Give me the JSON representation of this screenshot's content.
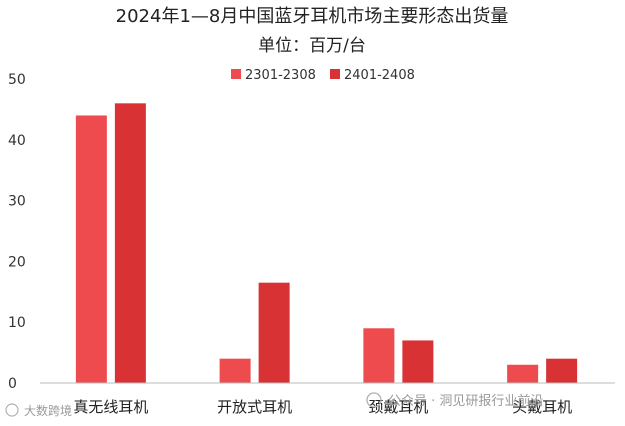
{
  "chart_data": {
    "type": "bar",
    "title": "2024年1—8月中国蓝牙耳机市场主要形态出货量",
    "subtitle": "单位：百万/台",
    "categories": [
      "真无线耳机",
      "开放式耳机",
      "颈戴耳机",
      "头戴耳机"
    ],
    "series": [
      {
        "name": "2301-2308",
        "values": [
          44,
          4,
          9,
          3
        ],
        "color": "#ee4b4f"
      },
      {
        "name": "2401-2408",
        "values": [
          46,
          16.5,
          7,
          4
        ],
        "color": "#d93235"
      }
    ],
    "ylim": [
      0,
      50
    ],
    "yticks": [
      0,
      10,
      20,
      30,
      40,
      50
    ],
    "grid": false,
    "legend": "top-center"
  },
  "watermark": {
    "text": "公众号 · 洞见研报行业前沿",
    "corner_text": "大数跨境",
    "icon": "wechat-icon"
  }
}
